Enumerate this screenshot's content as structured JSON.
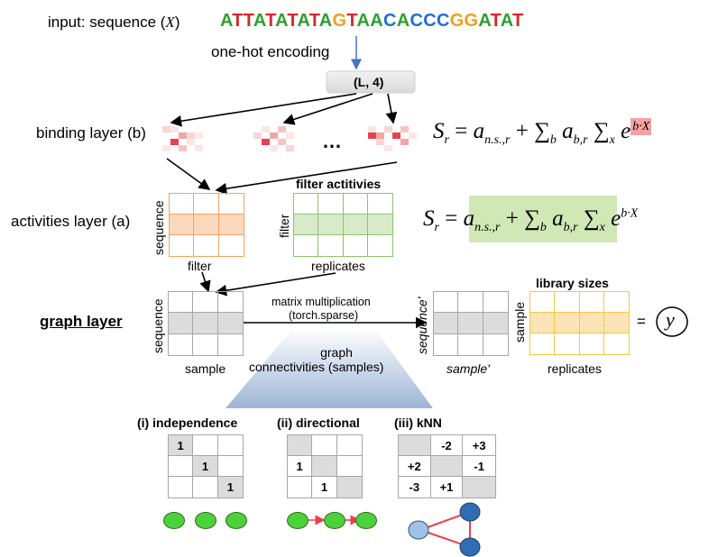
{
  "input": {
    "label": "input: sequence (",
    "vec": "X",
    "label_close": ")",
    "sequence": [
      {
        "c": "A",
        "color": "#2ca02c"
      },
      {
        "c": "T",
        "color": "#d62728"
      },
      {
        "c": "T",
        "color": "#d62728"
      },
      {
        "c": "A",
        "color": "#2ca02c"
      },
      {
        "c": "T",
        "color": "#d62728"
      },
      {
        "c": "A",
        "color": "#2ca02c"
      },
      {
        "c": "T",
        "color": "#d62728"
      },
      {
        "c": "A",
        "color": "#2ca02c"
      },
      {
        "c": "T",
        "color": "#d62728"
      },
      {
        "c": "A",
        "color": "#2ca02c"
      },
      {
        "c": "G",
        "color": "#f0a020"
      },
      {
        "c": "T",
        "color": "#d62728"
      },
      {
        "c": "A",
        "color": "#2ca02c"
      },
      {
        "c": "A",
        "color": "#2ca02c"
      },
      {
        "c": "C",
        "color": "#1f6fd1"
      },
      {
        "c": "A",
        "color": "#2ca02c"
      },
      {
        "c": "C",
        "color": "#1f6fd1"
      },
      {
        "c": "C",
        "color": "#1f6fd1"
      },
      {
        "c": "C",
        "color": "#1f6fd1"
      },
      {
        "c": "G",
        "color": "#f0a020"
      },
      {
        "c": "G",
        "color": "#f0a020"
      },
      {
        "c": "A",
        "color": "#2ca02c"
      },
      {
        "c": "T",
        "color": "#d62728"
      },
      {
        "c": "A",
        "color": "#2ca02c"
      },
      {
        "c": "T",
        "color": "#d62728"
      }
    ]
  },
  "encoding": {
    "label": "one-hot encoding",
    "shape": "(L, 4)"
  },
  "binding": {
    "label": "binding layer (b)",
    "ellipsis": "…"
  },
  "activities": {
    "label": "activities layer (a)",
    "filter_title": "filter actitivies",
    "seq_axis": "sequence",
    "filter_axis": "filter",
    "filter_axis2": "filter",
    "replicates_axis": "replicates"
  },
  "graph": {
    "label": "graph layer",
    "seq_axis": "sequence",
    "sample_axis": "sample",
    "matmul": "matrix multiplication",
    "matmul_sub": "(torch.sparse)",
    "seq_axis2": "sequence'",
    "sample_axis2": "sample'",
    "library_title": "library sizes",
    "lib_sample_axis": "sample",
    "lib_replicates_axis": "replicates",
    "equals": "=",
    "output": "y",
    "connectivities": "graph\nconnectivities (samples)"
  },
  "equations": {
    "eq1": "S_r = a_{n.s.,r} + Σ_b a_{b,r} Σ_x e^{b·X}",
    "eq2": "S_r = a_{n.s.,r} + Σ_b a_{b,r} Σ_x e^{b·X}"
  },
  "connectivity": [
    {
      "title": "(i) independence",
      "cells": [
        "1",
        "",
        "",
        "",
        "1",
        "",
        "",
        "",
        "1"
      ]
    },
    {
      "title": "(ii) directional",
      "cells": [
        "",
        "",
        "",
        "1",
        "",
        "",
        "",
        "1",
        ""
      ]
    },
    {
      "title": "(iii) kNN",
      "cells": [
        "",
        "-2",
        "+3",
        "+2",
        "",
        "-1",
        "-3",
        "+1",
        ""
      ]
    }
  ],
  "colors": {
    "orange": "#f4a460",
    "green": "#8dc26f",
    "yellow": "#f5c842",
    "gray": "#a6a6a6",
    "red": "#e8414e",
    "blue": "#2f6db5"
  }
}
